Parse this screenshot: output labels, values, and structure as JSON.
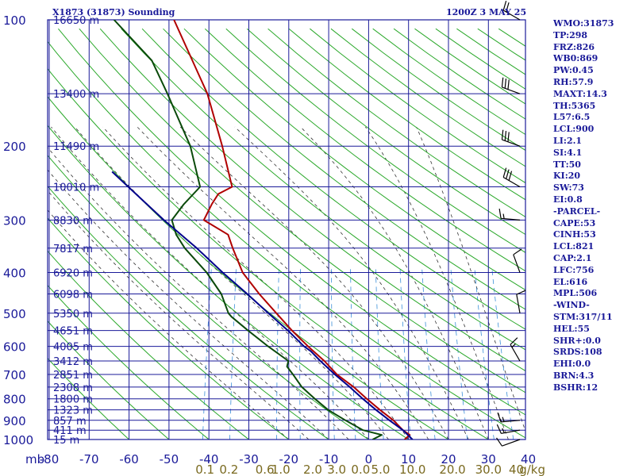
{
  "header": {
    "title": "X1873 (31873) Sounding",
    "datetime": "1200Z  3 MAY 25"
  },
  "indices": [
    "WMO:31873",
    "TP:298",
    "FRZ:826",
    "WB0:869",
    "PW:0.45",
    "RH:57.9",
    "MAXT:14.3",
    "TH:5365",
    "L57:6.5",
    "LCL:900",
    "LI:2.1",
    "SI:4.1",
    "TT:50",
    "KI:20",
    "SW:73",
    "EI:0.8",
    "-PARCEL-",
    "CAPE:53",
    "CINH:53",
    "LCL:821",
    "CAP:2.1",
    "LFC:756",
    "EL:616",
    "MPL:506",
    "-WIND-",
    "STM:317/11",
    "HEL:55",
    "SHR+:0.0",
    "SRDS:108",
    "EHI:0.0",
    "BRN:4.3",
    "BSHR:12"
  ],
  "colors": {
    "grid": "#1a1a99",
    "temperature": "#b00000",
    "dewpoint": "#0a4a0a",
    "parcel": "#00008b",
    "dry_adiabat": "#2aa82a",
    "moist_adiabat": "#333333",
    "mixing_ratio": "#3a8fd8",
    "mixing_label": "#7a6a20"
  },
  "chart_data": {
    "type": "line",
    "diagram": "skew-T log-P",
    "title": "X1873 (31873) Sounding",
    "xlabel": "",
    "ylabel": "mb",
    "xlim": [
      -80,
      40
    ],
    "ylim": [
      1000,
      100
    ],
    "y_scale": "log",
    "grid": true,
    "temperature_ticks": [
      -80,
      -70,
      -60,
      -50,
      -40,
      -30,
      -20,
      -10,
      0,
      10,
      20,
      30,
      40
    ],
    "temperature_tick_labels": [
      "-80",
      "-70",
      "-60",
      "-50",
      "-40",
      "-30",
      "-20",
      "-10",
      "0",
      "10",
      "20",
      "30",
      "40"
    ],
    "pressure_ticks": [
      100,
      200,
      300,
      400,
      500,
      600,
      700,
      800,
      900,
      1000
    ],
    "pressure_tick_labels": [
      "100",
      "200",
      "300",
      "400",
      "500",
      "600",
      "700",
      "800",
      "900",
      "1000"
    ],
    "height_labels": [
      {
        "p": 100,
        "label": "16650 m"
      },
      {
        "p": 150,
        "label": "13400 m"
      },
      {
        "p": 200,
        "label": "11490 m"
      },
      {
        "p": 250,
        "label": "10010 m"
      },
      {
        "p": 300,
        "label": "8830 m"
      },
      {
        "p": 350,
        "label": "7817 m"
      },
      {
        "p": 400,
        "label": "6920 m"
      },
      {
        "p": 450,
        "label": "6098 m"
      },
      {
        "p": 500,
        "label": "5350 m"
      },
      {
        "p": 550,
        "label": "4651 m"
      },
      {
        "p": 600,
        "label": "4005 m"
      },
      {
        "p": 650,
        "label": "3412 m"
      },
      {
        "p": 700,
        "label": "2851 m"
      },
      {
        "p": 750,
        "label": "2308 m"
      },
      {
        "p": 800,
        "label": "1800 m"
      },
      {
        "p": 850,
        "label": "1323 m"
      },
      {
        "p": 900,
        "label": "857 m"
      },
      {
        "p": 950,
        "label": "411 m"
      },
      {
        "p": 1000,
        "label": "15 m"
      }
    ],
    "mixing_ratio_labels": [
      {
        "x_temp": -41,
        "label": "0.1"
      },
      {
        "x_temp": -35,
        "label": "0.2"
      },
      {
        "x_temp": -26,
        "label": "0.6"
      },
      {
        "x_temp": -22,
        "label": "1.0"
      },
      {
        "x_temp": -14,
        "label": "2.0"
      },
      {
        "x_temp": -8,
        "label": "3.0"
      },
      {
        "x_temp": -2,
        "label": "0.0"
      },
      {
        "x_temp": 3,
        "label": "5.0"
      },
      {
        "x_temp": 11,
        "label": "10.0"
      },
      {
        "x_temp": 21,
        "label": "20.0"
      },
      {
        "x_temp": 30,
        "label": "30.0"
      },
      {
        "x_temp": 37,
        "label": "40"
      },
      {
        "x_temp": 41,
        "label": "g/kg"
      }
    ],
    "series": [
      {
        "name": "",
        "key": "temperature",
        "points": [
          [
            1000,
            9
          ],
          [
            975,
            10
          ],
          [
            950,
            8
          ],
          [
            900,
            5
          ],
          [
            850,
            1
          ],
          [
            800,
            -3
          ],
          [
            750,
            -7
          ],
          [
            700,
            -12
          ],
          [
            650,
            -16
          ],
          [
            600,
            -21
          ],
          [
            550,
            -26
          ],
          [
            500,
            -31
          ],
          [
            450,
            -36.5
          ],
          [
            400,
            -42
          ],
          [
            350,
            -46
          ],
          [
            325,
            -48
          ],
          [
            300,
            -55
          ],
          [
            275,
            -54
          ],
          [
            260,
            -53
          ],
          [
            250,
            -50
          ],
          [
            200,
            -55
          ],
          [
            150,
            -62
          ],
          [
            100,
            -75
          ]
        ]
      },
      {
        "name": "",
        "key": "dewpoint",
        "points": [
          [
            1000,
            1
          ],
          [
            975,
            3
          ],
          [
            950,
            -2
          ],
          [
            900,
            -7
          ],
          [
            850,
            -12
          ],
          [
            800,
            -16
          ],
          [
            750,
            -20
          ],
          [
            700,
            -23
          ],
          [
            670,
            -25
          ],
          [
            650,
            -25
          ],
          [
            600,
            -31
          ],
          [
            550,
            -37
          ],
          [
            510,
            -42
          ],
          [
            500,
            -43
          ],
          [
            450,
            -46
          ],
          [
            400,
            -51
          ],
          [
            350,
            -58
          ],
          [
            325,
            -61
          ],
          [
            300,
            -63
          ],
          [
            275,
            -61
          ],
          [
            250,
            -58
          ],
          [
            200,
            -63
          ],
          [
            160,
            -70
          ],
          [
            150,
            -72
          ],
          [
            125,
            -78
          ],
          [
            100,
            -90
          ]
        ]
      },
      {
        "name": "",
        "key": "parcel",
        "points": [
          [
            1000,
            11
          ],
          [
            950,
            8
          ],
          [
            900,
            4
          ],
          [
            850,
            0
          ],
          [
            800,
            -4
          ],
          [
            750,
            -8
          ],
          [
            700,
            -12.5
          ],
          [
            650,
            -17
          ],
          [
            616,
            -20
          ],
          [
            600,
            -22
          ],
          [
            550,
            -27
          ],
          [
            500,
            -33
          ],
          [
            450,
            -39.5
          ],
          [
            400,
            -47
          ],
          [
            350,
            -55
          ],
          [
            300,
            -65
          ],
          [
            250,
            -76
          ],
          [
            230,
            -81
          ]
        ]
      }
    ],
    "wind_barbs": [
      {
        "p": 1000,
        "dir": 250,
        "kt": 10
      },
      {
        "p": 950,
        "dir": 260,
        "kt": 15
      },
      {
        "p": 900,
        "dir": 265,
        "kt": 15
      },
      {
        "p": 650,
        "dir": 330,
        "kt": 15
      },
      {
        "p": 500,
        "dir": 350,
        "kt": 10
      },
      {
        "p": 400,
        "dir": 340,
        "kt": 10
      },
      {
        "p": 300,
        "dir": 275,
        "kt": 15
      },
      {
        "p": 250,
        "dir": 300,
        "kt": 30
      },
      {
        "p": 200,
        "dir": 290,
        "kt": 30
      },
      {
        "p": 150,
        "dir": 290,
        "kt": 30
      },
      {
        "p": 100,
        "dir": 300,
        "kt": 20
      }
    ]
  }
}
